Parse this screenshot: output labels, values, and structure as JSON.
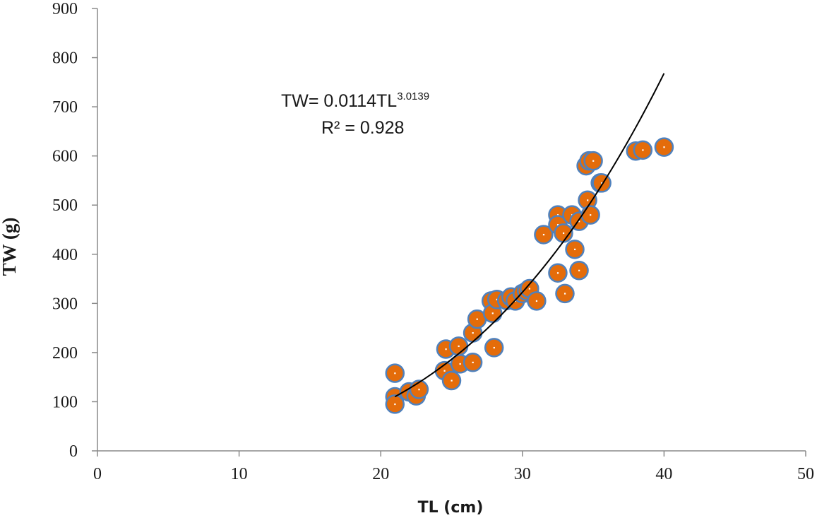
{
  "chart_data": {
    "type": "scatter",
    "xlabel": "TL (cm)",
    "ylabel": "TW (g)",
    "xlim": [
      0,
      50
    ],
    "ylim": [
      0,
      900
    ],
    "x_ticks": [
      0,
      10,
      20,
      30,
      40,
      50
    ],
    "y_ticks": [
      0,
      100,
      200,
      300,
      400,
      500,
      600,
      700,
      800,
      900
    ],
    "grid": false,
    "colors": {
      "marker_fill": "#E46C0A",
      "marker_edge": "#4F81BD",
      "trendline": "#000000"
    },
    "series": [
      {
        "points": [
          [
            21.0,
            158
          ],
          [
            21.0,
            110
          ],
          [
            21.0,
            95
          ],
          [
            22.0,
            120
          ],
          [
            22.5,
            112
          ],
          [
            22.7,
            125
          ],
          [
            24.5,
            163
          ],
          [
            24.6,
            207
          ],
          [
            25.0,
            143
          ],
          [
            25.5,
            213
          ],
          [
            25.6,
            177
          ],
          [
            26.5,
            180
          ],
          [
            26.5,
            240
          ],
          [
            26.8,
            268
          ],
          [
            27.8,
            305
          ],
          [
            27.9,
            280
          ],
          [
            28.0,
            210
          ],
          [
            28.2,
            308
          ],
          [
            28.9,
            306
          ],
          [
            29.2,
            313
          ],
          [
            29.5,
            305
          ],
          [
            30.0,
            320
          ],
          [
            30.3,
            325
          ],
          [
            30.5,
            330
          ],
          [
            31.0,
            305
          ],
          [
            31.5,
            440
          ],
          [
            32.5,
            480
          ],
          [
            32.5,
            460
          ],
          [
            32.5,
            362
          ],
          [
            32.9,
            443
          ],
          [
            33.0,
            320
          ],
          [
            33.5,
            480
          ],
          [
            33.7,
            410
          ],
          [
            34.0,
            467
          ],
          [
            34.0,
            367
          ],
          [
            34.5,
            580
          ],
          [
            34.6,
            510
          ],
          [
            34.7,
            590
          ],
          [
            34.8,
            480
          ],
          [
            35.0,
            590
          ],
          [
            35.5,
            545
          ],
          [
            35.6,
            545
          ],
          [
            38.0,
            610
          ],
          [
            38.5,
            612
          ],
          [
            40.0,
            618
          ]
        ]
      }
    ],
    "trendline": {
      "type": "power",
      "coefficient": 0.0114,
      "exponent": 3.0139,
      "x_range": [
        21,
        40
      ],
      "equation_prefix": "TW= 0.0114TL",
      "equation_exponent": "3.0139",
      "r_squared_text": "R² = 0.928"
    }
  }
}
